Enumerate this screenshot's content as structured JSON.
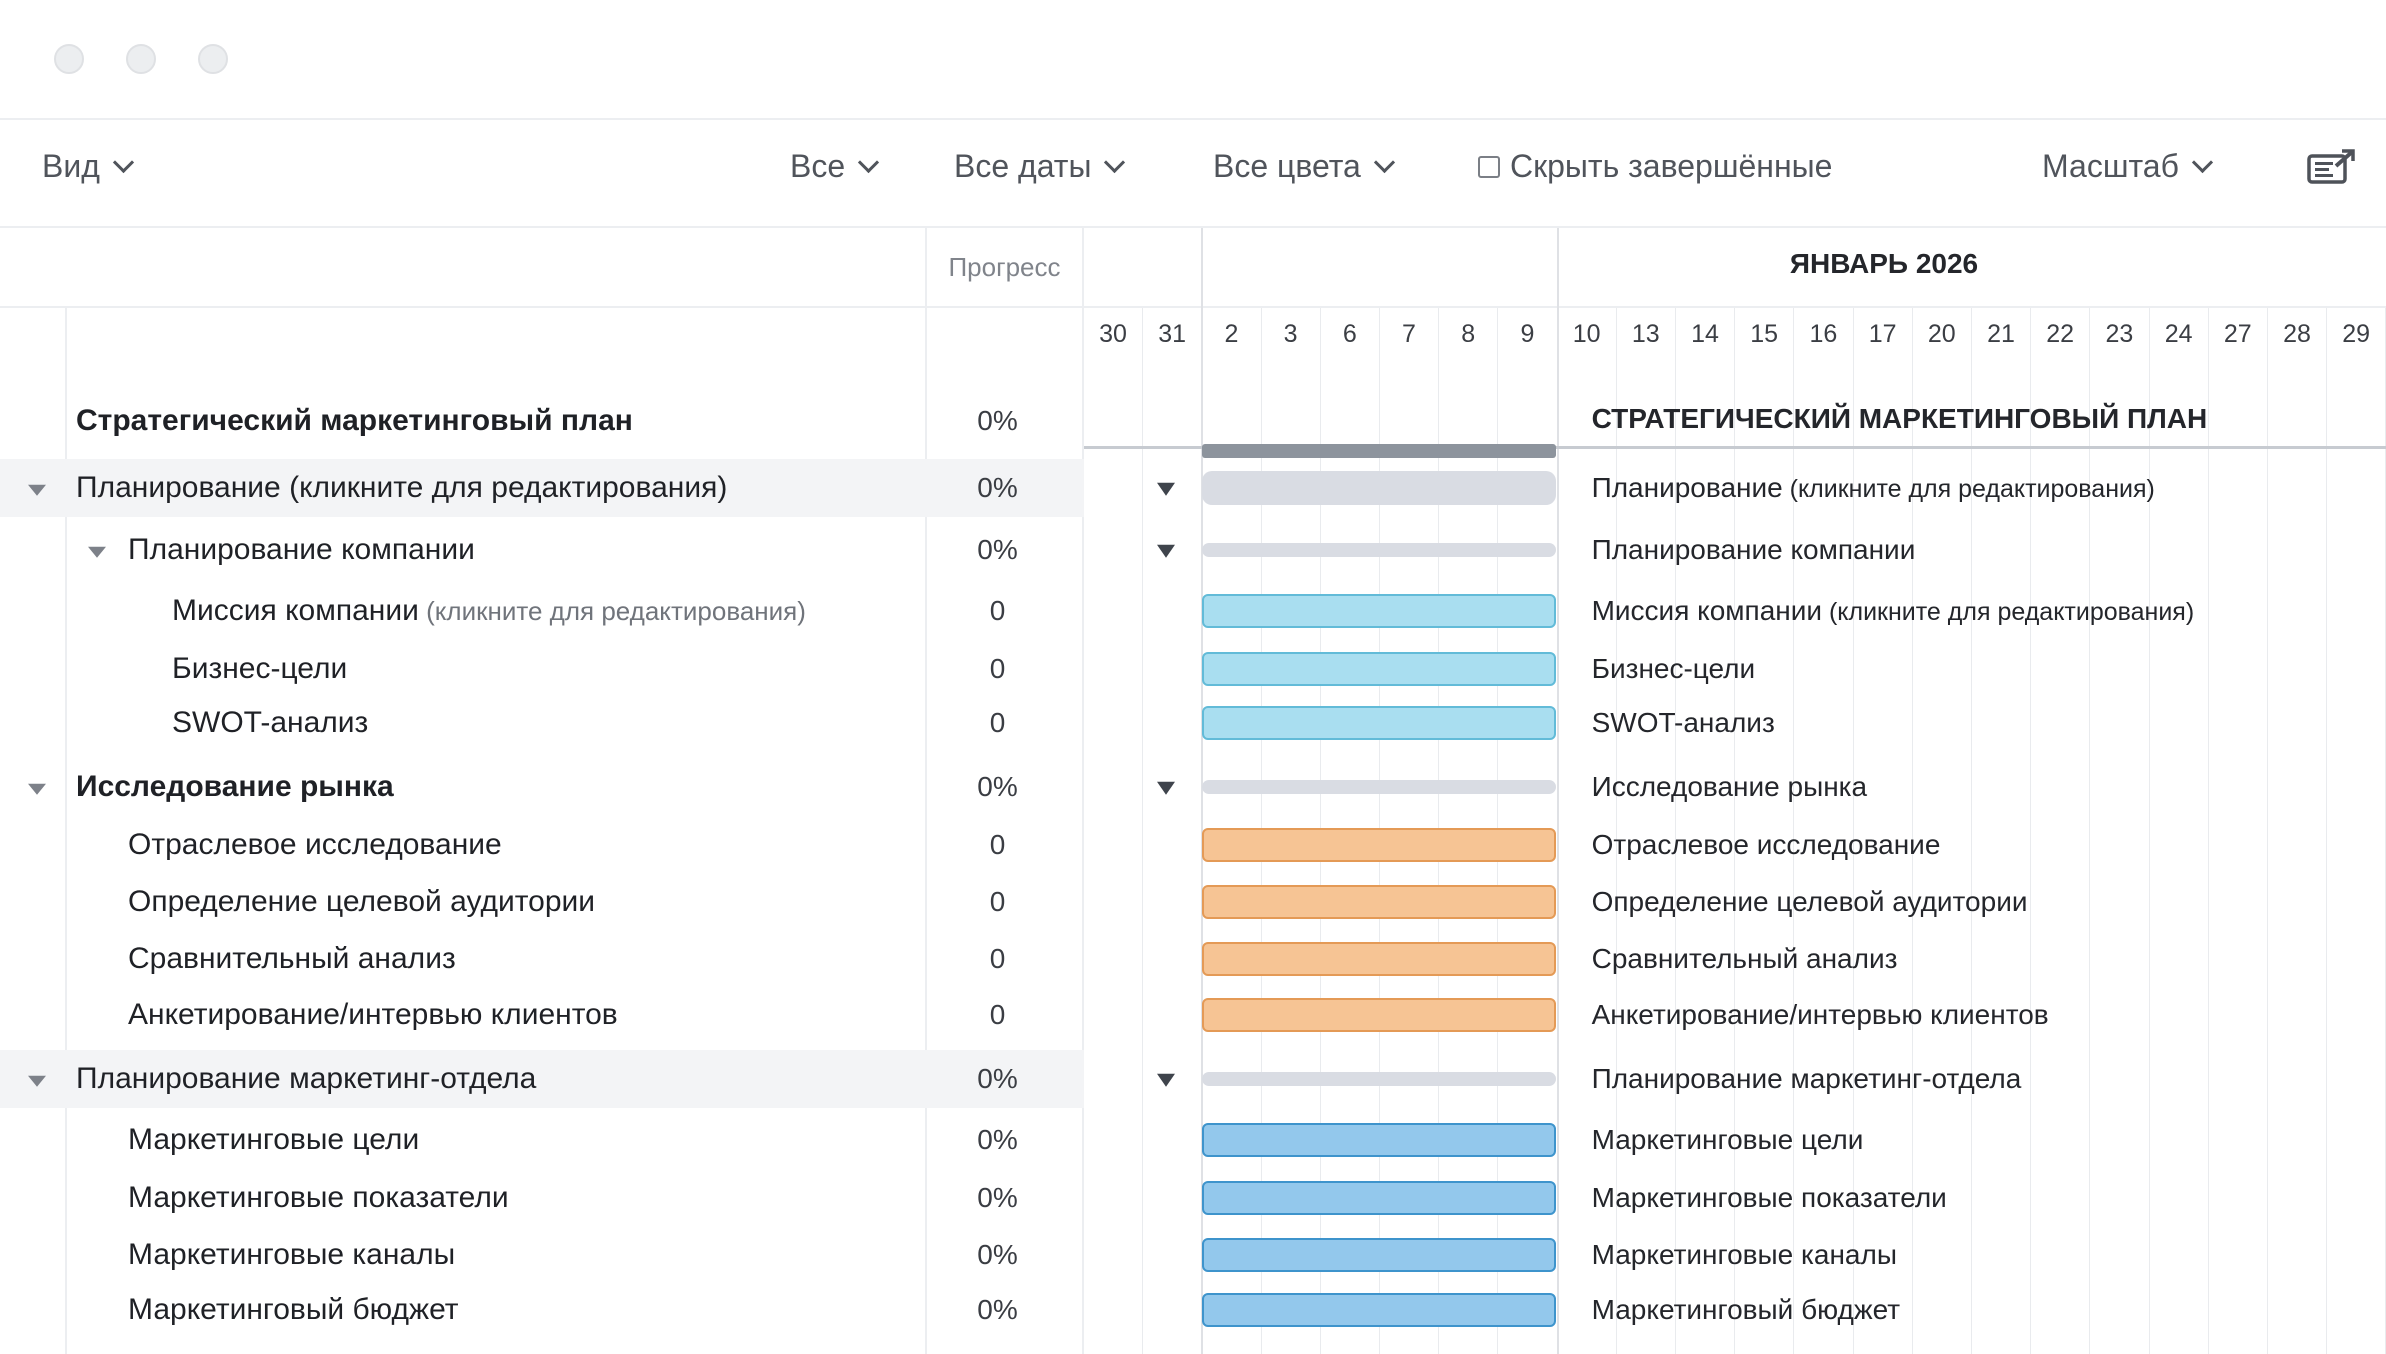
{
  "window": {
    "controls": [
      "close",
      "minimize",
      "zoom"
    ]
  },
  "toolbar": {
    "view_label": "Вид",
    "filter_all_label": "Все",
    "filter_dates_label": "Все даты",
    "filter_colors_label": "Все цвета",
    "hide_completed_label": "Скрыть завершённые",
    "hide_completed_checked": false,
    "zoom_label": "Масштаб",
    "export_icon": "export-icon"
  },
  "table": {
    "progress_header": "Прогресс",
    "rows": [
      {
        "name": "Стратегический маркетинговый план",
        "sub": "",
        "progress": "0%",
        "level": 0,
        "bold": true,
        "collapsible": false,
        "shaded": false
      },
      {
        "name": "Планирование (кликните для редактирования)",
        "sub": "",
        "progress": "0%",
        "level": 0,
        "bold": false,
        "collapsible": true,
        "shaded": true
      },
      {
        "name": "Планирование компании",
        "sub": "",
        "progress": "0%",
        "level": 1,
        "bold": false,
        "collapsible": true,
        "shaded": false
      },
      {
        "name": "Миссия компании",
        "sub": " (кликните для редактирования)",
        "progress": "0",
        "level": 2,
        "bold": false,
        "collapsible": false,
        "shaded": false
      },
      {
        "name": "Бизнес-цели",
        "sub": "",
        "progress": "0",
        "level": 2,
        "bold": false,
        "collapsible": false,
        "shaded": false
      },
      {
        "name": "SWOT-анализ",
        "sub": "",
        "progress": "0",
        "level": 2,
        "bold": false,
        "collapsible": false,
        "shaded": false
      },
      {
        "name": "Исследование рынка",
        "sub": "",
        "progress": "0%",
        "level": 0,
        "bold": true,
        "collapsible": true,
        "shaded": false
      },
      {
        "name": "Отраслевое исследование",
        "sub": "",
        "progress": "0",
        "level": 1,
        "bold": false,
        "collapsible": false,
        "shaded": false
      },
      {
        "name": "Определение целевой аудитории",
        "sub": "",
        "progress": "0",
        "level": 1,
        "bold": false,
        "collapsible": false,
        "shaded": false
      },
      {
        "name": "Сравнительный анализ",
        "sub": "",
        "progress": "0",
        "level": 1,
        "bold": false,
        "collapsible": false,
        "shaded": false
      },
      {
        "name": "Анкетирование/интервью клиентов",
        "sub": "",
        "progress": "0",
        "level": 1,
        "bold": false,
        "collapsible": false,
        "shaded": false
      },
      {
        "name": "Планирование маркетинг-отдела",
        "sub": "",
        "progress": "0%",
        "level": 0,
        "bold": false,
        "collapsible": true,
        "shaded": true
      },
      {
        "name": "Маркетинговые цели",
        "sub": "",
        "progress": "0%",
        "level": 1,
        "bold": false,
        "collapsible": false,
        "shaded": false
      },
      {
        "name": "Маркетинговые показатели",
        "sub": "",
        "progress": "0%",
        "level": 1,
        "bold": false,
        "collapsible": false,
        "shaded": false
      },
      {
        "name": "Маркетинговые каналы",
        "sub": "",
        "progress": "0%",
        "level": 1,
        "bold": false,
        "collapsible": false,
        "shaded": false
      },
      {
        "name": "Маркетинговый бюджет",
        "sub": "",
        "progress": "0%",
        "level": 1,
        "bold": false,
        "collapsible": false,
        "shaded": false
      }
    ]
  },
  "gantt": {
    "month_label": "ЯНВАРЬ 2026",
    "days": [
      "30",
      "31",
      "2",
      "3",
      "6",
      "7",
      "8",
      "9",
      "10",
      "13",
      "14",
      "15",
      "16",
      "17",
      "20",
      "21",
      "22",
      "23",
      "24",
      "27",
      "28",
      "29"
    ],
    "items": [
      {
        "label": "СТРАТЕГИЧЕСКИЙ МАРКЕТИНГОВЫЙ ПЛАН",
        "sub": "",
        "bar": "main",
        "bold": true,
        "collapsible": false
      },
      {
        "label": "Планирование",
        "sub": " (кликните для редактирования)",
        "bar": "summary",
        "bold": false,
        "collapsible": true
      },
      {
        "label": "Планирование компании",
        "sub": "",
        "bar": "summary-thin",
        "bold": false,
        "collapsible": true
      },
      {
        "label": "Миссия компании",
        "sub": " (кликните для редактирования)",
        "bar": "teal",
        "bold": false,
        "collapsible": false
      },
      {
        "label": "Бизнес-цели",
        "sub": "",
        "bar": "teal",
        "bold": false,
        "collapsible": false
      },
      {
        "label": "SWOT-анализ",
        "sub": "",
        "bar": "teal",
        "bold": false,
        "collapsible": false
      },
      {
        "label": "Исследование рынка",
        "sub": "",
        "bar": "summary-thin",
        "bold": false,
        "collapsible": true
      },
      {
        "label": "Отраслевое исследование",
        "sub": "",
        "bar": "orange",
        "bold": false,
        "collapsible": false
      },
      {
        "label": "Определение целевой аудитории",
        "sub": "",
        "bar": "orange",
        "bold": false,
        "collapsible": false
      },
      {
        "label": "Сравнительный анализ",
        "sub": "",
        "bar": "orange",
        "bold": false,
        "collapsible": false
      },
      {
        "label": "Анкетирование/интервью клиентов",
        "sub": "",
        "bar": "orange",
        "bold": false,
        "collapsible": false
      },
      {
        "label": "Планирование маркетинг-отдела",
        "sub": "",
        "bar": "summary-thin",
        "bold": false,
        "collapsible": true
      },
      {
        "label": "Маркетинговые цели",
        "sub": "",
        "bar": "blue",
        "bold": false,
        "collapsible": false
      },
      {
        "label": "Маркетинговые показатели",
        "sub": "",
        "bar": "blue",
        "bold": false,
        "collapsible": false
      },
      {
        "label": "Маркетинговые каналы",
        "sub": "",
        "bar": "blue",
        "bold": false,
        "collapsible": false
      },
      {
        "label": "Маркетинговый бюджет",
        "sub": "",
        "bar": "blue",
        "bold": false,
        "collapsible": false
      }
    ]
  },
  "colors": {
    "teal": "#a9def0",
    "orange": "#f6c494",
    "blue": "#93c8ec",
    "summary": "#d9dce3",
    "main": "#8d949d"
  }
}
